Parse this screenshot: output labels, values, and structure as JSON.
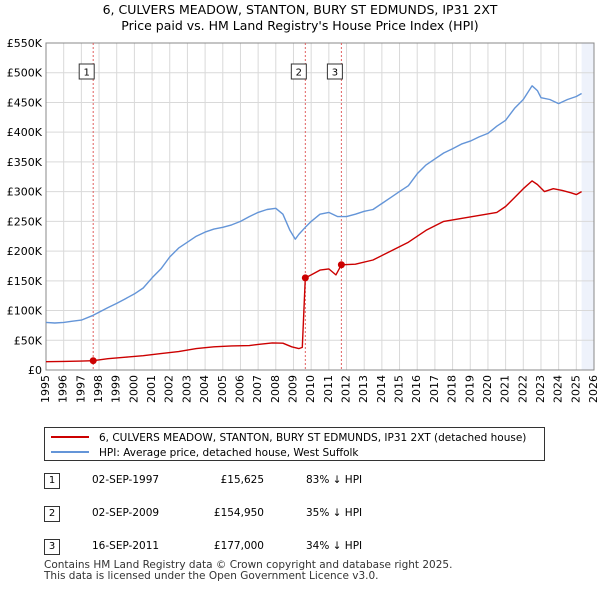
{
  "title_line1": "6, CULVERS MEADOW, STANTON, BURY ST EDMUNDS, IP31 2XT",
  "title_line2": "Price paid vs. HM Land Registry's House Price Index (HPI)",
  "colors": {
    "property": "#cc0000",
    "hpi": "#6495d8",
    "shade": "#eef2fb",
    "grid": "#d9d9d9",
    "marker_line": "#e06060"
  },
  "chart_data": {
    "type": "line",
    "title": "Price paid vs. HM Land Registry's House Price Index (HPI)",
    "xlabel": "",
    "ylabel": "",
    "xlim": [
      1995,
      2026
    ],
    "ylim": [
      0,
      550000
    ],
    "x_ticks": [
      "1995",
      "1996",
      "1997",
      "1998",
      "1999",
      "2000",
      "2001",
      "2002",
      "2003",
      "2004",
      "2005",
      "2006",
      "2007",
      "2008",
      "2009",
      "2010",
      "2011",
      "2012",
      "2013",
      "2014",
      "2015",
      "2016",
      "2017",
      "2018",
      "2019",
      "2020",
      "2021",
      "2022",
      "2023",
      "2024",
      "2025",
      "2026"
    ],
    "y_ticks": [
      {
        "value": 0,
        "label": "£0"
      },
      {
        "value": 50000,
        "label": "£50K"
      },
      {
        "value": 100000,
        "label": "£100K"
      },
      {
        "value": 150000,
        "label": "£150K"
      },
      {
        "value": 200000,
        "label": "£200K"
      },
      {
        "value": 250000,
        "label": "£250K"
      },
      {
        "value": 300000,
        "label": "£300K"
      },
      {
        "value": 350000,
        "label": "£350K"
      },
      {
        "value": 400000,
        "label": "£400K"
      },
      {
        "value": 450000,
        "label": "£450K"
      },
      {
        "value": 500000,
        "label": "£500K"
      },
      {
        "value": 550000,
        "label": "£550K"
      }
    ],
    "shaded_from_x": 2025.3,
    "series": [
      {
        "name": "6, CULVERS MEADOW, STANTON, BURY ST EDMUNDS, IP31 2XT (detached house)",
        "x": [
          1995.0,
          1996.0,
          1997.0,
          1997.67,
          1998.5,
          1999.5,
          2000.5,
          2001.5,
          2002.5,
          2003.5,
          2004.5,
          2005.5,
          2006.5,
          2007.0,
          2007.8,
          2008.4,
          2008.9,
          2009.3,
          2009.5,
          2009.67,
          2010.0,
          2010.5,
          2011.0,
          2011.4,
          2011.71,
          2012.5,
          2013.5,
          2014.5,
          2015.5,
          2016.5,
          2017.5,
          2018.5,
          2019.5,
          2020.5,
          2021.0,
          2021.5,
          2022.0,
          2022.5,
          2022.8,
          2023.2,
          2023.7,
          2024.2,
          2024.7,
          2025.0,
          2025.3
        ],
        "values": [
          14000,
          14500,
          15000,
          15625,
          19000,
          21500,
          24000,
          27500,
          31000,
          36000,
          39000,
          40500,
          41000,
          43000,
          45500,
          45000,
          39000,
          36000,
          38000,
          154950,
          160000,
          168000,
          170000,
          160000,
          177000,
          178000,
          185000,
          200000,
          215000,
          235000,
          250000,
          255000,
          260000,
          265000,
          275000,
          290000,
          305000,
          318000,
          312000,
          300000,
          305000,
          302000,
          298000,
          295000,
          300000
        ]
      },
      {
        "name": "HPI: Average price, detached house, West Suffolk",
        "x": [
          1995.0,
          1995.5,
          1996.0,
          1996.5,
          1997.0,
          1997.67,
          1998.5,
          1999.0,
          1999.5,
          2000.0,
          2000.5,
          2001.0,
          2001.5,
          2002.0,
          2002.5,
          2003.0,
          2003.5,
          2004.0,
          2004.5,
          2005.0,
          2005.5,
          2006.0,
          2006.5,
          2007.0,
          2007.5,
          2008.0,
          2008.4,
          2008.8,
          2009.1,
          2009.3,
          2009.67,
          2010.0,
          2010.5,
          2011.0,
          2011.5,
          2012.0,
          2012.5,
          2013.0,
          2013.5,
          2014.0,
          2014.5,
          2015.0,
          2015.5,
          2016.0,
          2016.5,
          2017.0,
          2017.5,
          2018.0,
          2018.5,
          2019.0,
          2019.5,
          2020.0,
          2020.5,
          2021.0,
          2021.5,
          2022.0,
          2022.5,
          2022.8,
          2023.0,
          2023.5,
          2024.0,
          2024.5,
          2025.0,
          2025.3
        ],
        "values": [
          80000,
          79000,
          80000,
          82000,
          84000,
          92000,
          105000,
          112000,
          120000,
          128000,
          138000,
          155000,
          170000,
          190000,
          205000,
          215000,
          225000,
          232000,
          237000,
          240000,
          244000,
          250000,
          258000,
          265000,
          270000,
          272000,
          262000,
          235000,
          220000,
          228000,
          240000,
          250000,
          262000,
          265000,
          258000,
          258000,
          262000,
          267000,
          270000,
          280000,
          290000,
          300000,
          310000,
          330000,
          345000,
          355000,
          365000,
          372000,
          380000,
          385000,
          392000,
          398000,
          410000,
          420000,
          440000,
          455000,
          478000,
          470000,
          458000,
          455000,
          448000,
          455000,
          460000,
          465000
        ]
      }
    ],
    "sale_markers": [
      {
        "label": "1",
        "x": 1997.67,
        "value": 15625
      },
      {
        "label": "2",
        "x": 2009.67,
        "value": 154950
      },
      {
        "label": "3",
        "x": 2011.71,
        "value": 177000
      }
    ]
  },
  "legend": {
    "property_label": "6, CULVERS MEADOW, STANTON, BURY ST EDMUNDS, IP31 2XT (detached house)",
    "hpi_label": "HPI: Average price, detached house, West Suffolk"
  },
  "transactions": [
    {
      "num": "1",
      "date": "02-SEP-1997",
      "price": "£15,625",
      "hpi": "83% ↓ HPI"
    },
    {
      "num": "2",
      "date": "02-SEP-2009",
      "price": "£154,950",
      "hpi": "35% ↓ HPI"
    },
    {
      "num": "3",
      "date": "16-SEP-2011",
      "price": "£177,000",
      "hpi": "34% ↓ HPI"
    }
  ],
  "footer": {
    "line1": "Contains HM Land Registry data © Crown copyright and database right 2025.",
    "line2": "This data is licensed under the Open Government Licence v3.0."
  }
}
